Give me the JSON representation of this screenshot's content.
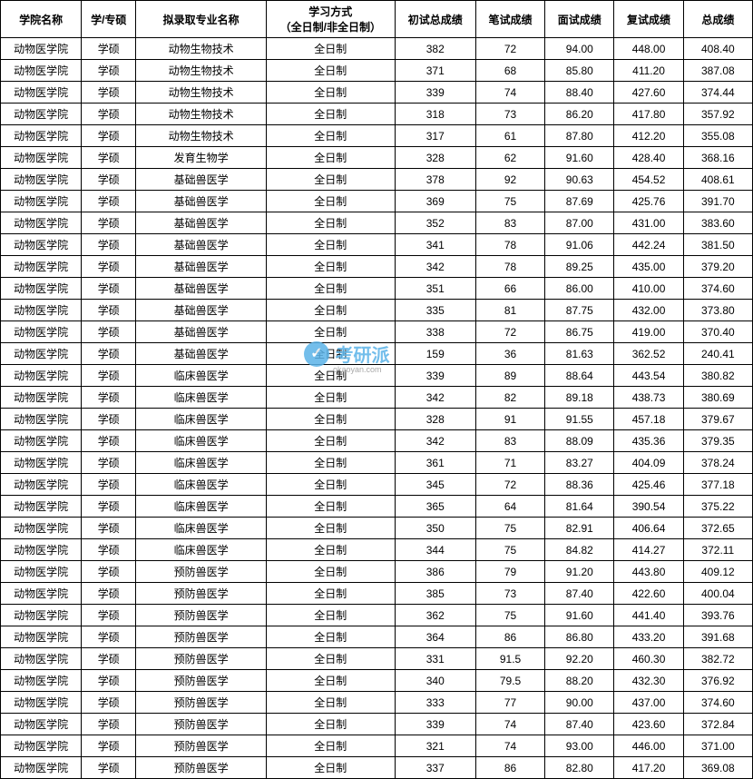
{
  "table": {
    "headers": {
      "college": "学院名称",
      "type": "学/专硕",
      "major": "拟录取专业名称",
      "mode_line1": "学习方式",
      "mode_line2": "（全日制/非全日制）",
      "score1": "初试总成绩",
      "score2": "笔试成绩",
      "score3": "面试成绩",
      "score4": "复试成绩",
      "score5": "总成绩"
    },
    "common": {
      "college": "动物医学院",
      "type": "学硕",
      "mode": "全日制"
    },
    "rows": [
      {
        "major": "动物生物技术",
        "s1": "382",
        "s2": "72",
        "s3": "94.00",
        "s4": "448.00",
        "s5": "408.40"
      },
      {
        "major": "动物生物技术",
        "s1": "371",
        "s2": "68",
        "s3": "85.80",
        "s4": "411.20",
        "s5": "387.08"
      },
      {
        "major": "动物生物技术",
        "s1": "339",
        "s2": "74",
        "s3": "88.40",
        "s4": "427.60",
        "s5": "374.44"
      },
      {
        "major": "动物生物技术",
        "s1": "318",
        "s2": "73",
        "s3": "86.20",
        "s4": "417.80",
        "s5": "357.92"
      },
      {
        "major": "动物生物技术",
        "s1": "317",
        "s2": "61",
        "s3": "87.80",
        "s4": "412.20",
        "s5": "355.08"
      },
      {
        "major": "发育生物学",
        "s1": "328",
        "s2": "62",
        "s3": "91.60",
        "s4": "428.40",
        "s5": "368.16"
      },
      {
        "major": "基础兽医学",
        "s1": "378",
        "s2": "92",
        "s3": "90.63",
        "s4": "454.52",
        "s5": "408.61"
      },
      {
        "major": "基础兽医学",
        "s1": "369",
        "s2": "75",
        "s3": "87.69",
        "s4": "425.76",
        "s5": "391.70"
      },
      {
        "major": "基础兽医学",
        "s1": "352",
        "s2": "83",
        "s3": "87.00",
        "s4": "431.00",
        "s5": "383.60"
      },
      {
        "major": "基础兽医学",
        "s1": "341",
        "s2": "78",
        "s3": "91.06",
        "s4": "442.24",
        "s5": "381.50"
      },
      {
        "major": "基础兽医学",
        "s1": "342",
        "s2": "78",
        "s3": "89.25",
        "s4": "435.00",
        "s5": "379.20"
      },
      {
        "major": "基础兽医学",
        "s1": "351",
        "s2": "66",
        "s3": "86.00",
        "s4": "410.00",
        "s5": "374.60"
      },
      {
        "major": "基础兽医学",
        "s1": "335",
        "s2": "81",
        "s3": "87.75",
        "s4": "432.00",
        "s5": "373.80"
      },
      {
        "major": "基础兽医学",
        "s1": "338",
        "s2": "72",
        "s3": "86.75",
        "s4": "419.00",
        "s5": "370.40"
      },
      {
        "major": "基础兽医学",
        "s1": "159",
        "s2": "36",
        "s3": "81.63",
        "s4": "362.52",
        "s5": "240.41"
      },
      {
        "major": "临床兽医学",
        "s1": "339",
        "s2": "89",
        "s3": "88.64",
        "s4": "443.54",
        "s5": "380.82"
      },
      {
        "major": "临床兽医学",
        "s1": "342",
        "s2": "82",
        "s3": "89.18",
        "s4": "438.73",
        "s5": "380.69"
      },
      {
        "major": "临床兽医学",
        "s1": "328",
        "s2": "91",
        "s3": "91.55",
        "s4": "457.18",
        "s5": "379.67"
      },
      {
        "major": "临床兽医学",
        "s1": "342",
        "s2": "83",
        "s3": "88.09",
        "s4": "435.36",
        "s5": "379.35"
      },
      {
        "major": "临床兽医学",
        "s1": "361",
        "s2": "71",
        "s3": "83.27",
        "s4": "404.09",
        "s5": "378.24"
      },
      {
        "major": "临床兽医学",
        "s1": "345",
        "s2": "72",
        "s3": "88.36",
        "s4": "425.46",
        "s5": "377.18"
      },
      {
        "major": "临床兽医学",
        "s1": "365",
        "s2": "64",
        "s3": "81.64",
        "s4": "390.54",
        "s5": "375.22"
      },
      {
        "major": "临床兽医学",
        "s1": "350",
        "s2": "75",
        "s3": "82.91",
        "s4": "406.64",
        "s5": "372.65"
      },
      {
        "major": "临床兽医学",
        "s1": "344",
        "s2": "75",
        "s3": "84.82",
        "s4": "414.27",
        "s5": "372.11"
      },
      {
        "major": "预防兽医学",
        "s1": "386",
        "s2": "79",
        "s3": "91.20",
        "s4": "443.80",
        "s5": "409.12"
      },
      {
        "major": "预防兽医学",
        "s1": "385",
        "s2": "73",
        "s3": "87.40",
        "s4": "422.60",
        "s5": "400.04"
      },
      {
        "major": "预防兽医学",
        "s1": "362",
        "s2": "75",
        "s3": "91.60",
        "s4": "441.40",
        "s5": "393.76"
      },
      {
        "major": "预防兽医学",
        "s1": "364",
        "s2": "86",
        "s3": "86.80",
        "s4": "433.20",
        "s5": "391.68"
      },
      {
        "major": "预防兽医学",
        "s1": "331",
        "s2": "91.5",
        "s3": "92.20",
        "s4": "460.30",
        "s5": "382.72"
      },
      {
        "major": "预防兽医学",
        "s1": "340",
        "s2": "79.5",
        "s3": "88.20",
        "s4": "432.30",
        "s5": "376.92"
      },
      {
        "major": "预防兽医学",
        "s1": "333",
        "s2": "77",
        "s3": "90.00",
        "s4": "437.00",
        "s5": "374.60"
      },
      {
        "major": "预防兽医学",
        "s1": "339",
        "s2": "74",
        "s3": "87.40",
        "s4": "423.60",
        "s5": "372.84"
      },
      {
        "major": "预防兽医学",
        "s1": "321",
        "s2": "74",
        "s3": "93.00",
        "s4": "446.00",
        "s5": "371.00"
      },
      {
        "major": "预防兽医学",
        "s1": "337",
        "s2": "86",
        "s3": "82.80",
        "s4": "417.20",
        "s5": "369.08"
      }
    ]
  },
  "watermark": {
    "icon": "✓",
    "text": "考研派",
    "sub": "okaoyan.com"
  },
  "style": {
    "border_color": "#000000",
    "bg_color": "#ffffff",
    "font_size": 12,
    "header_font_weight": "bold",
    "watermark_color": "#5bb3e8"
  }
}
